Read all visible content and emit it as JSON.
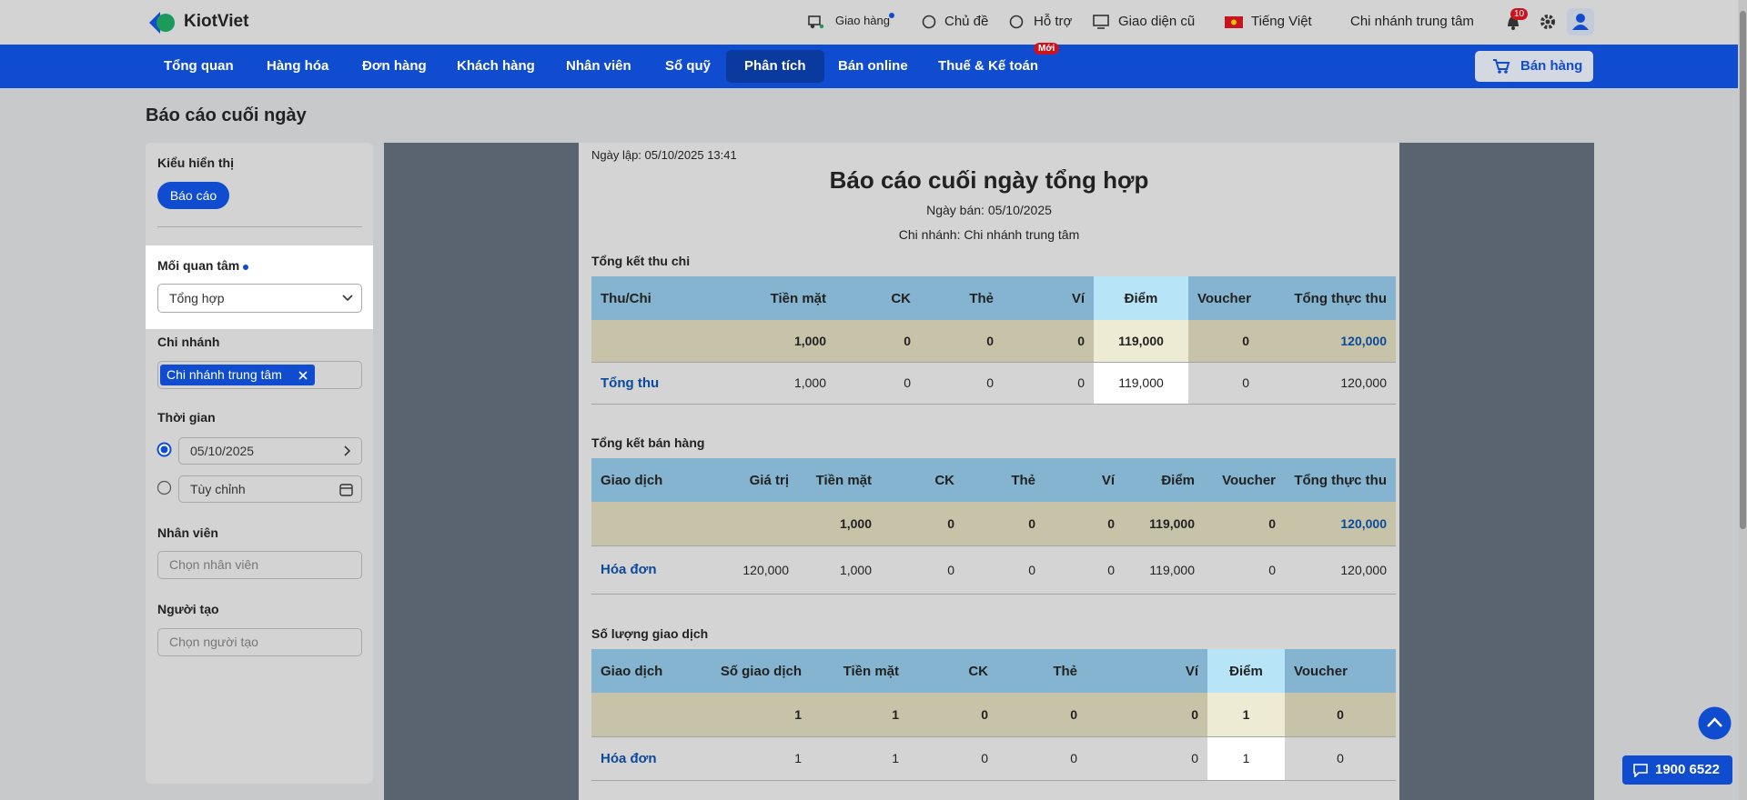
{
  "topbar": {
    "logo": "KiotViet",
    "links": [
      "Giao hàng",
      "Chủ đề",
      "Hỗ trợ",
      "Giao diện cũ",
      "Tiếng Việt",
      "Chi nhánh trung tâm"
    ],
    "notifications": "10"
  },
  "nav": {
    "items": [
      "Tổng quan",
      "Hàng hóa",
      "Đơn hàng",
      "Khách hàng",
      "Nhân viên",
      "Sổ quỹ",
      "Phân tích",
      "Bán online",
      "Thuế & Kế toán"
    ],
    "badge": "Mới",
    "sell_button": "Bán hàng"
  },
  "page_title": "Báo cáo cuối ngày",
  "filters": {
    "display_label": "Kiểu hiển thị",
    "display_button": "Báo cáo",
    "concern_label": "Mối quan tâm",
    "concern_value": "Tổng hợp",
    "branch_label": "Chi nhánh",
    "branch_tag": "Chi nhánh trung tâm",
    "time_label": "Thời gian",
    "date": "05/10/2025",
    "custom": "Tùy chỉnh",
    "staff_label": "Nhân viên",
    "staff_placeholder": "Chọn nhân viên",
    "creator_label": "Người tạo",
    "creator_placeholder": "Chọn người tạo"
  },
  "report": {
    "created": "Ngày lập: 05/10/2025 13:41",
    "title": "Báo cáo cuối ngày tổng hợp",
    "sale_date": "Ngày bán: 05/10/2025",
    "branch": "Chi nhánh: Chi nhánh trung tâm",
    "sections": [
      {
        "title": "Tổng kết thu chi",
        "columns": [
          "Thu/Chi",
          "Tiền mặt",
          "CK",
          "Thẻ",
          "Ví",
          "Điểm",
          "Voucher",
          "Tổng thực thu"
        ],
        "rows": [
          [
            null,
            "1,000",
            "0",
            "0",
            "0",
            "119,000",
            "0",
            "120,000"
          ],
          [
            "Tổng thu",
            "1,000",
            "0",
            "0",
            "0",
            "119,000",
            "0",
            "120,000"
          ]
        ]
      },
      {
        "title": "Tổng kết bán hàng",
        "columns": [
          "Giao dịch",
          "Giá trị",
          "Tiền mặt",
          "CK",
          "Thẻ",
          "Ví",
          "Điểm",
          "Voucher",
          "Tổng thực thu"
        ],
        "rows": [
          [
            null,
            null,
            "1,000",
            "0",
            "0",
            "0",
            "119,000",
            "0",
            "120,000"
          ],
          [
            "Hóa đơn",
            "120,000",
            "1,000",
            "0",
            "0",
            "0",
            "119,000",
            "0",
            "120,000"
          ]
        ]
      },
      {
        "title": "Số lượng giao dịch",
        "columns": [
          "Giao dịch",
          "Số giao dịch",
          "Tiền mặt",
          "CK",
          "Thẻ",
          "Ví",
          "Điểm",
          "Voucher"
        ],
        "rows": [
          [
            null,
            "1",
            "1",
            "0",
            "0",
            "0",
            "1",
            "0"
          ],
          [
            "Hóa đơn",
            "1",
            "1",
            "0",
            "0",
            "0",
            "1",
            "0"
          ]
        ]
      }
    ]
  },
  "support": "1900 6522"
}
